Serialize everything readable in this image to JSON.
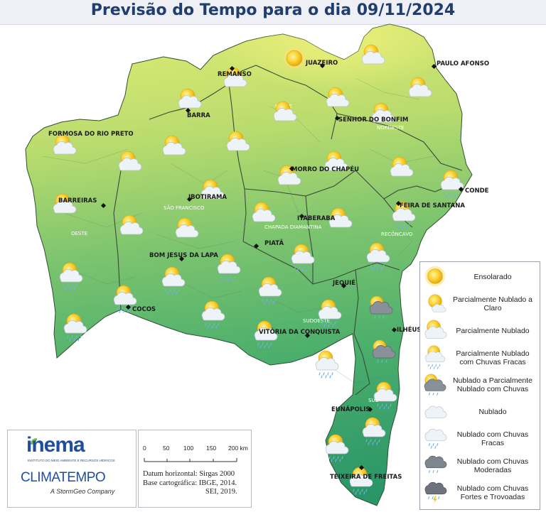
{
  "title": "Previsão do Tempo para o dia 09/11/2024",
  "cities": [
    {
      "name": "JUAZEIRO"
    },
    {
      "name": "PAULO AFONSO"
    },
    {
      "name": "REMANSO"
    },
    {
      "name": "BARRA"
    },
    {
      "name": "SENHOR DO BONFIM"
    },
    {
      "name": "FORMOSA DO RIO PRETO"
    },
    {
      "name": "MORRO DO CHAPÉU"
    },
    {
      "name": "CONDE"
    },
    {
      "name": "BARREIRAS"
    },
    {
      "name": "IBOTIRAMA"
    },
    {
      "name": "FEIRA DE SANTANA"
    },
    {
      "name": "ITABERABA"
    },
    {
      "name": "PIATÃ"
    },
    {
      "name": "BOM JESUS DA LAPA"
    },
    {
      "name": "JEQUIÉ"
    },
    {
      "name": "ILHÉUS"
    },
    {
      "name": "COCOS"
    },
    {
      "name": "VITÓRIA DA CONQUISTA"
    },
    {
      "name": "EUNÁPOLIS"
    },
    {
      "name": "TEIXEIRA DE FREITAS"
    }
  ],
  "regions": [
    {
      "name": "NORTE"
    },
    {
      "name": "NORDESTE"
    },
    {
      "name": "SÃO FRANCISCO"
    },
    {
      "name": "CHAPADA DIAMANTINA"
    },
    {
      "name": "RECÔNCAVO"
    },
    {
      "name": "OESTE"
    },
    {
      "name": "SUDOESTE"
    },
    {
      "name": "SUL"
    }
  ],
  "legend": [
    {
      "label": "Ensolarado",
      "icon": "sun-icon"
    },
    {
      "label": "Parcialmente Nublado a Claro",
      "icon": "sun-small-cloud-icon"
    },
    {
      "label": "Parcialmente Nublado",
      "icon": "sun-cloud-icon"
    },
    {
      "label": "Parcialmente Nublado com Chuvas Fracas",
      "icon": "sun-cloud-light-rain-icon"
    },
    {
      "label": "Nublado a Parcialmente Nublado com Chuvas",
      "icon": "sun-dark-cloud-rain-icon"
    },
    {
      "label": "Nublado",
      "icon": "cloud-icon"
    },
    {
      "label": "Nublado com Chuvas Fracas",
      "icon": "cloud-light-rain-icon"
    },
    {
      "label": "Nublado com Chuvas Moderadas",
      "icon": "dark-cloud-rain-icon"
    },
    {
      "label": "Nublado com Chuvas Fortes e Trovoadas",
      "icon": "storm-cloud-icon"
    }
  ],
  "logos": {
    "inema": "inema",
    "inema_sub": "INSTITUTO DO MEIO AMBIENTE E RECURSOS HÍDRICOS",
    "climatempo": "CLIMATEMPO",
    "stormgeo": "A StormGeo Company"
  },
  "scale": {
    "ticks": [
      "0",
      "50",
      "100",
      "150",
      "200 km"
    ],
    "datum_lines": [
      "Datum horizontal: Sirgas 2000",
      "Base cartográfica: IBGE, 2014.",
      "SEI, 2019."
    ]
  },
  "colors": {
    "title": "#1f3d6e",
    "map_north": "#d8e870",
    "map_south": "#2e9a6a",
    "sun": "#f6c21b"
  }
}
